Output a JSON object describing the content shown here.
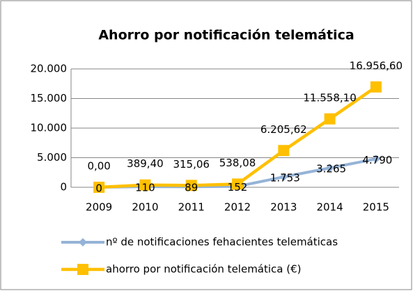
{
  "chart_data": {
    "type": "line",
    "title": "Ahorro por notificación telemática",
    "categories": [
      "2009",
      "2010",
      "2011",
      "2012",
      "2013",
      "2014",
      "2015"
    ],
    "series": [
      {
        "name": "nº de notificaciones fehacientes telemáticas",
        "color": "#95b3d7",
        "marker": "diamond",
        "values": [
          0,
          110,
          89,
          152,
          1753,
          3265,
          4790
        ],
        "value_labels": [
          "0",
          "110",
          "89",
          "152",
          "1.753",
          "3.265",
          "4.790"
        ]
      },
      {
        "name": "ahorro por notificación telemática (€)",
        "color": "#ffc000",
        "marker": "square",
        "values": [
          0,
          389.4,
          315.06,
          538.08,
          6205.62,
          11558.1,
          16956.6
        ],
        "value_labels": [
          "0,00",
          "389,40",
          "315,06",
          "538,08",
          "6.205,62",
          "11.558,10",
          "16.956,60"
        ]
      }
    ],
    "ylim": [
      0,
      20000
    ],
    "yticks": [
      0,
      {
        "value": 5000,
        "label": "5.000"
      },
      {
        "value": 10000,
        "label": "10.000"
      },
      {
        "value": 15000,
        "label": "15.000"
      },
      {
        "value": 20000,
        "label": "20.000"
      }
    ],
    "grid": true,
    "legend": "bottom"
  }
}
